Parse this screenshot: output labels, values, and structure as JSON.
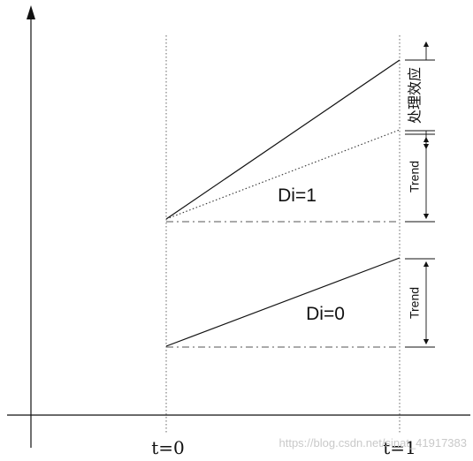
{
  "diagram": {
    "labels": {
      "group1": "Di=1",
      "group0": "Di=0",
      "t0": "t=0",
      "t1": "t=1",
      "trend_upper": "Trend",
      "trend_lower": "Trend",
      "treatment_effect": "处理效应"
    },
    "watermark": "https://blog.csdn.net/sinat_41917383",
    "colors": {
      "ink": "#111111",
      "grid": "#666666",
      "dashdot": "#555555",
      "watermark": "#c9c9c9"
    }
  }
}
